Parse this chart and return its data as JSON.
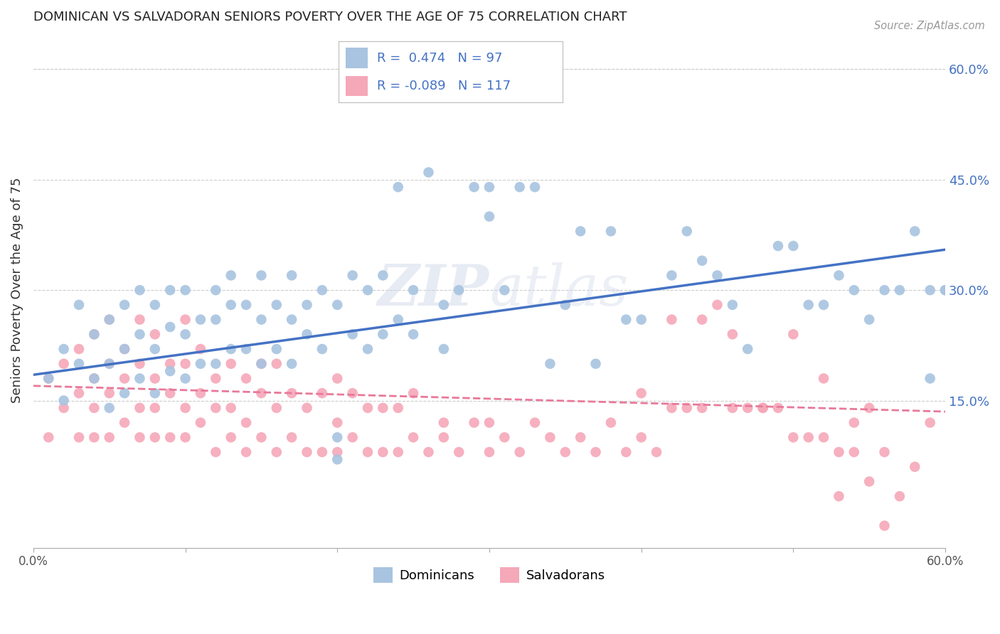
{
  "title": "DOMINICAN VS SALVADORAN SENIORS POVERTY OVER THE AGE OF 75 CORRELATION CHART",
  "source": "Source: ZipAtlas.com",
  "ylabel": "Seniors Poverty Over the Age of 75",
  "xlim": [
    0.0,
    0.6
  ],
  "ylim": [
    -0.05,
    0.65
  ],
  "ytick_positions": [
    0.15,
    0.3,
    0.45,
    0.6
  ],
  "ytick_labels": [
    "15.0%",
    "30.0%",
    "45.0%",
    "60.0%"
  ],
  "grid_color": "#cccccc",
  "bg_color": "#ffffff",
  "dominican_color": "#a8c4e0",
  "salvadoran_color": "#f5a8b8",
  "line_dominican": "#4472c4",
  "line_salvadoran": "#e8799a",
  "R_dominican": 0.474,
  "N_dominican": 97,
  "R_salvadoran": -0.089,
  "N_salvadoran": 117,
  "dom_line_start_y": 0.185,
  "dom_line_end_y": 0.355,
  "sal_line_start_y": 0.17,
  "sal_line_end_y": 0.135,
  "dom_x": [
    0.01,
    0.02,
    0.02,
    0.03,
    0.03,
    0.04,
    0.04,
    0.05,
    0.05,
    0.05,
    0.06,
    0.06,
    0.06,
    0.07,
    0.07,
    0.07,
    0.08,
    0.08,
    0.08,
    0.09,
    0.09,
    0.09,
    0.1,
    0.1,
    0.1,
    0.11,
    0.11,
    0.12,
    0.12,
    0.12,
    0.13,
    0.13,
    0.13,
    0.14,
    0.14,
    0.15,
    0.15,
    0.15,
    0.16,
    0.16,
    0.17,
    0.17,
    0.17,
    0.18,
    0.18,
    0.19,
    0.19,
    0.2,
    0.2,
    0.2,
    0.21,
    0.21,
    0.22,
    0.22,
    0.23,
    0.23,
    0.24,
    0.24,
    0.25,
    0.25,
    0.26,
    0.27,
    0.27,
    0.28,
    0.29,
    0.3,
    0.3,
    0.31,
    0.32,
    0.33,
    0.34,
    0.35,
    0.36,
    0.37,
    0.38,
    0.39,
    0.4,
    0.42,
    0.43,
    0.44,
    0.45,
    0.46,
    0.47,
    0.49,
    0.5,
    0.51,
    0.52,
    0.53,
    0.54,
    0.55,
    0.56,
    0.57,
    0.58,
    0.59,
    0.59,
    0.6,
    0.6
  ],
  "dom_y": [
    0.18,
    0.15,
    0.22,
    0.2,
    0.28,
    0.18,
    0.24,
    0.14,
    0.2,
    0.26,
    0.16,
    0.22,
    0.28,
    0.18,
    0.24,
    0.3,
    0.16,
    0.22,
    0.28,
    0.19,
    0.25,
    0.3,
    0.18,
    0.24,
    0.3,
    0.2,
    0.26,
    0.2,
    0.26,
    0.3,
    0.22,
    0.28,
    0.32,
    0.22,
    0.28,
    0.2,
    0.26,
    0.32,
    0.22,
    0.28,
    0.2,
    0.26,
    0.32,
    0.24,
    0.28,
    0.22,
    0.3,
    0.07,
    0.1,
    0.28,
    0.24,
    0.32,
    0.22,
    0.3,
    0.24,
    0.32,
    0.44,
    0.26,
    0.24,
    0.3,
    0.46,
    0.28,
    0.22,
    0.3,
    0.44,
    0.44,
    0.4,
    0.3,
    0.44,
    0.44,
    0.2,
    0.28,
    0.38,
    0.2,
    0.38,
    0.26,
    0.26,
    0.32,
    0.38,
    0.34,
    0.32,
    0.28,
    0.22,
    0.36,
    0.36,
    0.28,
    0.28,
    0.32,
    0.3,
    0.26,
    0.3,
    0.3,
    0.38,
    0.3,
    0.18,
    0.3,
    0.3
  ],
  "sal_x": [
    0.01,
    0.01,
    0.02,
    0.02,
    0.03,
    0.03,
    0.03,
    0.04,
    0.04,
    0.04,
    0.04,
    0.05,
    0.05,
    0.05,
    0.05,
    0.06,
    0.06,
    0.06,
    0.07,
    0.07,
    0.07,
    0.07,
    0.08,
    0.08,
    0.08,
    0.08,
    0.09,
    0.09,
    0.09,
    0.1,
    0.1,
    0.1,
    0.1,
    0.11,
    0.11,
    0.11,
    0.12,
    0.12,
    0.12,
    0.13,
    0.13,
    0.13,
    0.14,
    0.14,
    0.14,
    0.15,
    0.15,
    0.15,
    0.16,
    0.16,
    0.16,
    0.17,
    0.17,
    0.18,
    0.18,
    0.19,
    0.19,
    0.2,
    0.2,
    0.2,
    0.21,
    0.21,
    0.22,
    0.22,
    0.23,
    0.23,
    0.24,
    0.24,
    0.25,
    0.25,
    0.26,
    0.27,
    0.27,
    0.28,
    0.29,
    0.3,
    0.3,
    0.31,
    0.32,
    0.33,
    0.34,
    0.35,
    0.36,
    0.37,
    0.38,
    0.39,
    0.4,
    0.41,
    0.42,
    0.43,
    0.44,
    0.45,
    0.46,
    0.47,
    0.48,
    0.49,
    0.5,
    0.51,
    0.52,
    0.53,
    0.54,
    0.55,
    0.56,
    0.4,
    0.42,
    0.44,
    0.46,
    0.48,
    0.5,
    0.52,
    0.53,
    0.54,
    0.55,
    0.56,
    0.57,
    0.58,
    0.59
  ],
  "sal_y": [
    0.18,
    0.1,
    0.14,
    0.2,
    0.1,
    0.16,
    0.22,
    0.1,
    0.14,
    0.18,
    0.24,
    0.1,
    0.16,
    0.2,
    0.26,
    0.12,
    0.18,
    0.22,
    0.1,
    0.14,
    0.2,
    0.26,
    0.1,
    0.14,
    0.18,
    0.24,
    0.1,
    0.16,
    0.2,
    0.1,
    0.14,
    0.2,
    0.26,
    0.12,
    0.16,
    0.22,
    0.08,
    0.14,
    0.18,
    0.1,
    0.14,
    0.2,
    0.08,
    0.12,
    0.18,
    0.1,
    0.16,
    0.2,
    0.08,
    0.14,
    0.2,
    0.1,
    0.16,
    0.08,
    0.14,
    0.08,
    0.16,
    0.08,
    0.12,
    0.18,
    0.1,
    0.16,
    0.08,
    0.14,
    0.08,
    0.14,
    0.08,
    0.14,
    0.1,
    0.16,
    0.08,
    0.12,
    0.1,
    0.08,
    0.12,
    0.08,
    0.12,
    0.1,
    0.08,
    0.12,
    0.1,
    0.08,
    0.1,
    0.08,
    0.12,
    0.08,
    0.1,
    0.08,
    0.26,
    0.14,
    0.26,
    0.28,
    0.24,
    0.14,
    0.14,
    0.14,
    0.24,
    0.1,
    0.18,
    0.08,
    0.12,
    0.14,
    0.08,
    0.16,
    0.14,
    0.14,
    0.14,
    0.14,
    0.1,
    0.1,
    0.02,
    0.08,
    0.04,
    -0.02,
    0.02,
    0.06,
    0.12
  ]
}
